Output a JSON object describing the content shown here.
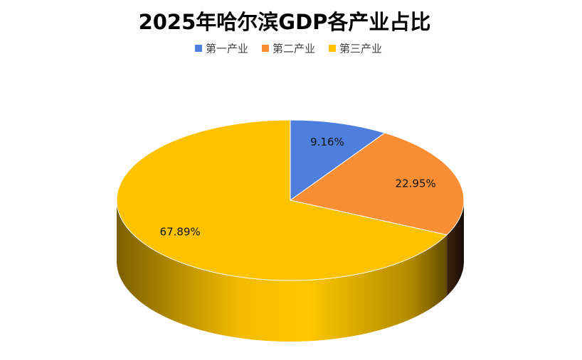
{
  "chart_data": {
    "type": "pie3d",
    "title": "2025年哈尔滨GDP各产业占比",
    "categories": [
      "第一产业",
      "第二产业",
      "第三产业"
    ],
    "values": [
      9.16,
      22.95,
      67.89
    ],
    "value_labels": [
      "9.16%",
      "22.95%",
      "67.89%"
    ],
    "colors": [
      "#4e7fdc",
      "#f98e35",
      "#fdc300"
    ],
    "legend": "top"
  }
}
